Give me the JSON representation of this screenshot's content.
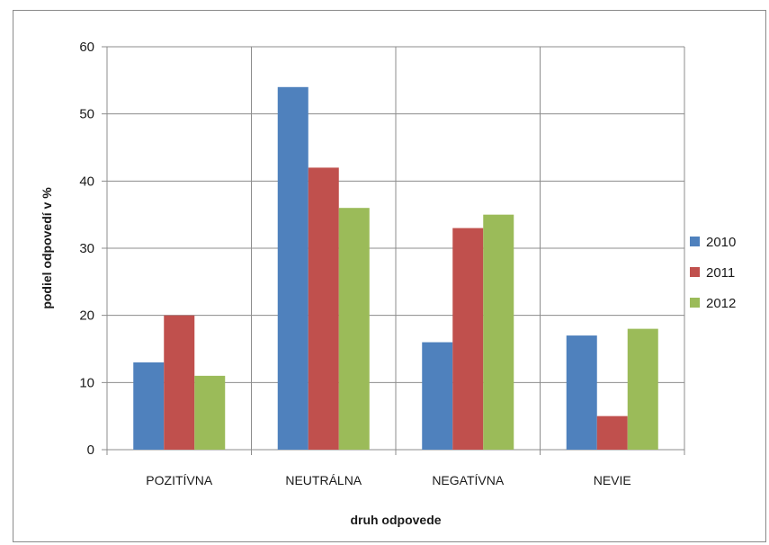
{
  "chart_data": {
    "type": "bar",
    "title": "",
    "xlabel": "druh odpovede",
    "ylabel": "podiel odpovedí v %",
    "categories": [
      "POZITÍVNA",
      "NEUTRÁLNA",
      "NEGATÍVNA",
      "NEVIE"
    ],
    "series": [
      {
        "name": "2010",
        "color": "#4f81bd",
        "values": [
          13,
          54,
          16,
          17
        ]
      },
      {
        "name": "2011",
        "color": "#c0504d",
        "values": [
          20,
          42,
          33,
          5
        ]
      },
      {
        "name": "2012",
        "color": "#9bbb59",
        "values": [
          11,
          36,
          35,
          18
        ]
      }
    ],
    "ylim": [
      0,
      60
    ],
    "yticks": [
      0,
      10,
      20,
      30,
      40,
      50,
      60
    ],
    "grid": true,
    "legend": "right"
  }
}
